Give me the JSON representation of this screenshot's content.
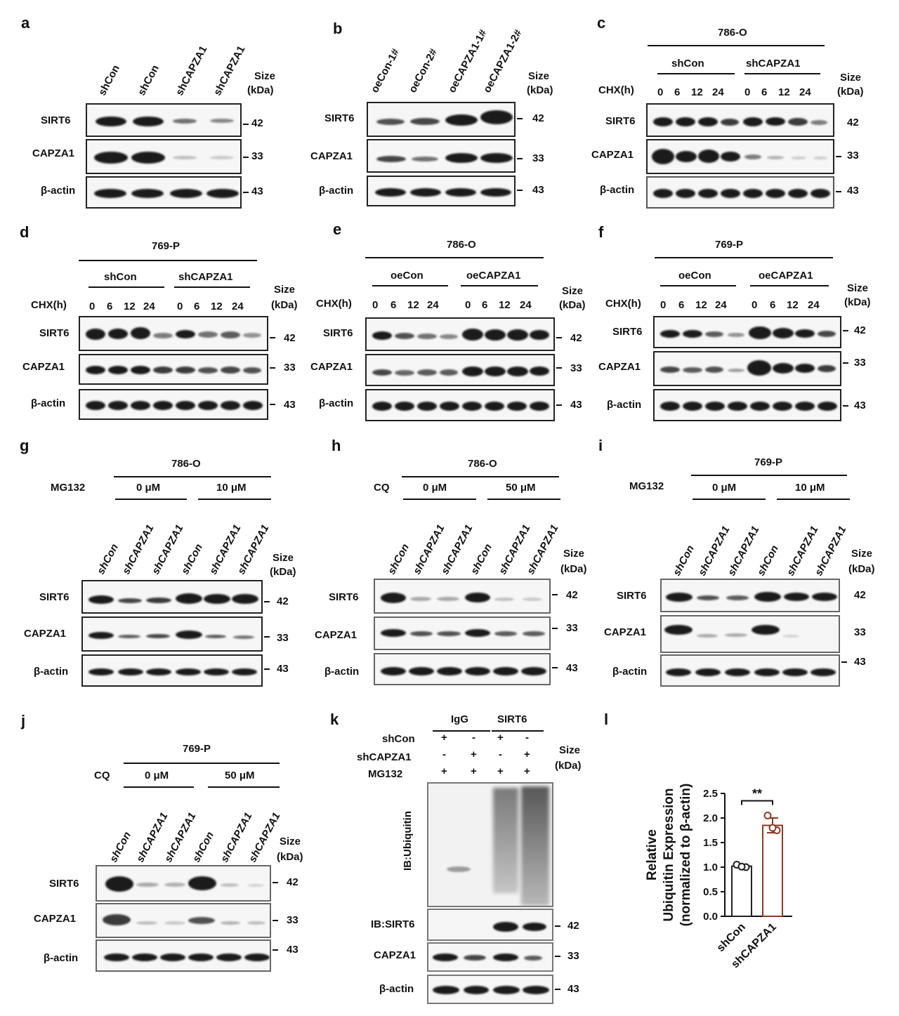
{
  "letters": {
    "a": "a",
    "b": "b",
    "c": "c",
    "d": "d",
    "e": "e",
    "f": "f",
    "g": "g",
    "h": "h",
    "i": "i",
    "j": "j",
    "k": "k",
    "l": "l"
  },
  "common": {
    "size_label": "Size",
    "kda_label": "(kDa)",
    "sirt6": "SIRT6",
    "capza1": "CAPZA1",
    "actin": "β-actin",
    "mw42": "42",
    "mw33": "33",
    "mw43": "43",
    "chx": "CHX(h)",
    "mg132": "MG132",
    "cq": "CQ"
  },
  "cells": {
    "c786": "786-O",
    "c769": "769-P"
  },
  "lanes_ab": {
    "a": [
      "shCon",
      "shCon",
      "shCAPZA1",
      "shCAPZA1"
    ],
    "b": [
      "oeCon-1#",
      "oeCon-2#",
      "oeCAPZA1-1#",
      "oeCAPZA1-2#"
    ]
  },
  "groups": {
    "shcon": "shCon",
    "shcapza1": "shCAPZA1",
    "oecon": "oeCon",
    "oecapza1": "oeCAPZA1",
    "zero_um": "0 μM",
    "ten_um": "10 μM",
    "fifty_um": "50 μM"
  },
  "chx_times": [
    "0",
    "6",
    "12",
    "24",
    "0",
    "6",
    "12",
    "24"
  ],
  "lanes_treat": [
    "shCon",
    "shCAPZA1",
    "shCAPZA1",
    "shCon",
    "shCAPZA1",
    "shCAPZA1"
  ],
  "k": {
    "igg": "IgG",
    "sirt6_ip": "SIRT6",
    "row_labels": [
      "shCon",
      "shCAPZA1",
      "MG132"
    ],
    "signs": [
      [
        "+",
        "-",
        "+",
        "-"
      ],
      [
        "-",
        "+",
        "-",
        "+"
      ],
      [
        "+",
        "+",
        "+",
        "+"
      ]
    ],
    "ib_ubiquitin": "IB:Ubiquitin",
    "ib_sirt6": "IB:SIRT6"
  },
  "chart_data": {
    "type": "bar",
    "categories": [
      "shCon",
      "shCAPZA1"
    ],
    "values": [
      1.02,
      1.85
    ],
    "points": [
      [
        1.05,
        1.0,
        1.01
      ],
      [
        2.05,
        1.75,
        1.8
      ]
    ],
    "error": [
      0.03,
      0.15
    ],
    "ylabel": "Relative Ubiquitin Expression (normalized to β-actin)",
    "ylabel_lines": [
      "Relative",
      "Ubiquitin Expression",
      "(normalized to β-actin)"
    ],
    "ylim": [
      0,
      2.5
    ],
    "yticks": [
      "0.0",
      "0.5",
      "1.0",
      "1.5",
      "2.0",
      "2.5"
    ],
    "significance": "**",
    "colors": [
      "#222222",
      "#8b3a20"
    ]
  }
}
